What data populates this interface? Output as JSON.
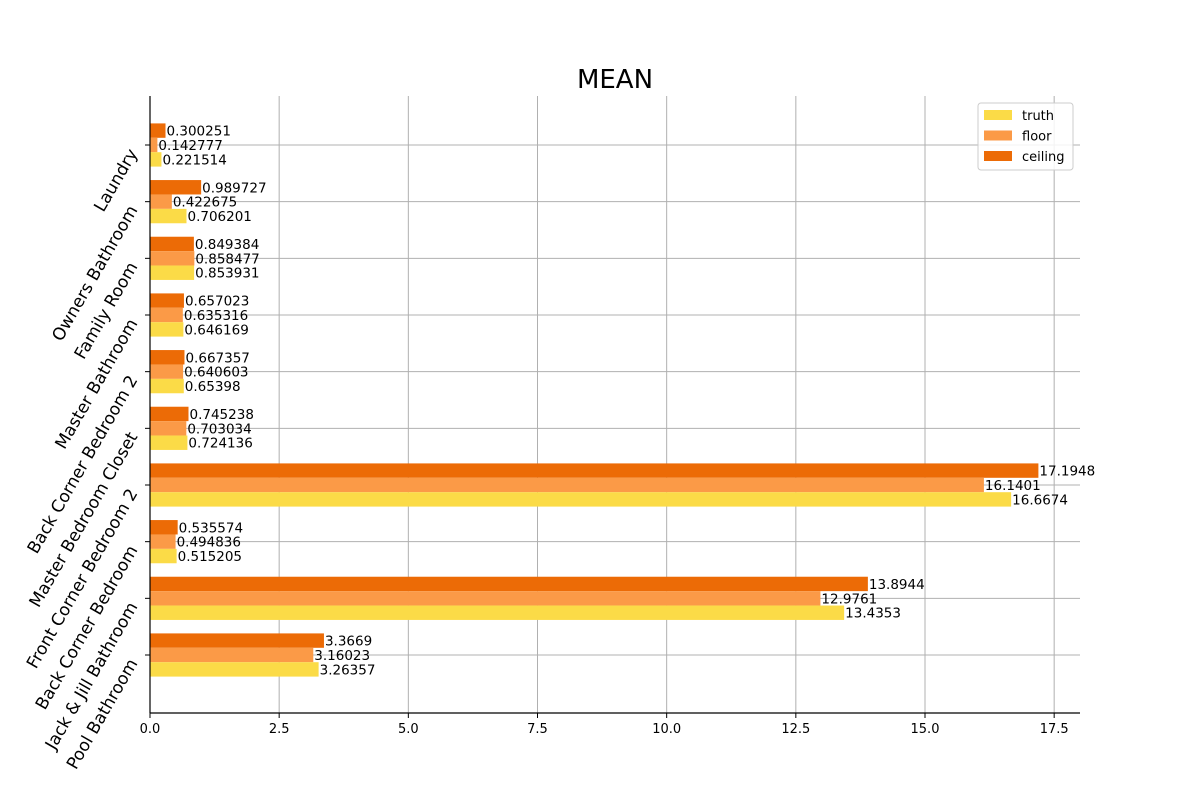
{
  "chart_data": {
    "type": "bar",
    "orientation": "horizontal",
    "title": "MEAN",
    "xlabel": "",
    "ylabel": "",
    "xlim": [
      0,
      18
    ],
    "xticks": [
      "0.0",
      "2.5",
      "5.0",
      "7.5",
      "10.0",
      "12.5",
      "15.0",
      "17.5"
    ],
    "grid": true,
    "legend_position": "top-right",
    "categories": [
      "Laundry",
      "Owners Bathroom",
      "Family Room",
      "Master Bathroom",
      "Back Corner Bedroom 2",
      "Master Bedroom Closet",
      "Front Corner Bedroom 2",
      "Back Corner Bedroom",
      "Jack & Jill Bathroom",
      "Pool Bathroom"
    ],
    "series": [
      {
        "name": "truth",
        "color": "#fbdb47",
        "values": [
          0.221514,
          0.706201,
          0.853931,
          0.646169,
          0.65398,
          0.724136,
          16.6674,
          0.515205,
          13.4353,
          3.26357
        ],
        "labels": [
          "0.221514",
          "0.706201",
          "0.853931",
          "0.646169",
          "0.65398",
          "0.724136",
          "16.6674",
          "0.515205",
          "13.4353",
          "3.26357"
        ]
      },
      {
        "name": "floor",
        "color": "#fb9a47",
        "values": [
          0.142777,
          0.422675,
          0.858477,
          0.635316,
          0.640603,
          0.703034,
          16.1401,
          0.494836,
          12.9761,
          3.16023
        ],
        "labels": [
          "0.142777",
          "0.422675",
          "0.858477",
          "0.635316",
          "0.640603",
          "0.703034",
          "16.1401",
          "0.494836",
          "12.9761",
          "3.16023"
        ]
      },
      {
        "name": "ceiling",
        "color": "#ec6b06",
        "values": [
          0.300251,
          0.989727,
          0.849384,
          0.657023,
          0.667357,
          0.745238,
          17.1948,
          0.535574,
          13.8944,
          3.3669
        ],
        "labels": [
          "0.300251",
          "0.989727",
          "0.849384",
          "0.657023",
          "0.667357",
          "0.745238",
          "17.1948",
          "0.535574",
          "13.8944",
          "3.3669"
        ]
      }
    ]
  }
}
